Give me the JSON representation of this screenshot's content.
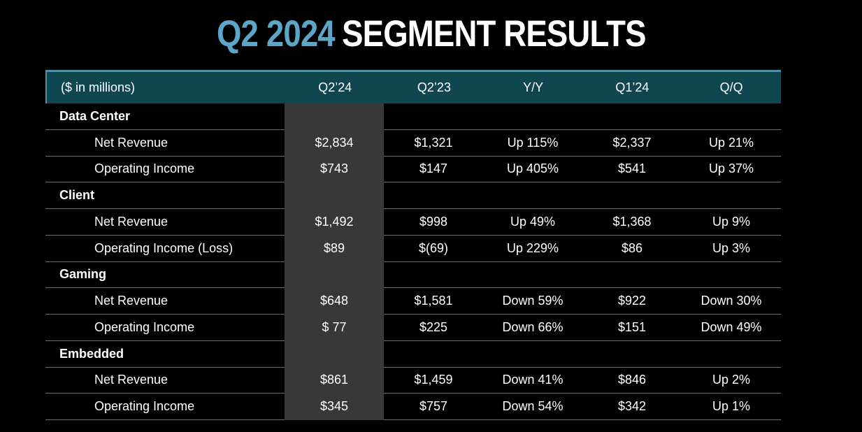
{
  "title": {
    "accent": "Q2 2024",
    "rest": "SEGMENT RESULTS"
  },
  "table": {
    "unit_label": "($ in millions)",
    "columns": [
      "Q2’24",
      "Q2’23",
      "Y/Y",
      "Q1’24",
      "Q/Q"
    ],
    "sections": [
      {
        "name": "Data Center",
        "rows": [
          {
            "label": "Net Revenue",
            "values": [
              "$2,834",
              "$1,321",
              "Up 115%",
              "$2,337",
              "Up 21%"
            ]
          },
          {
            "label": "Operating Income",
            "values": [
              "$743",
              "$147",
              "Up 405%",
              "$541",
              "Up 37%"
            ]
          }
        ]
      },
      {
        "name": "Client",
        "rows": [
          {
            "label": "Net Revenue",
            "values": [
              "$1,492",
              "$998",
              "Up 49%",
              "$1,368",
              "Up 9%"
            ]
          },
          {
            "label": "Operating Income (Loss)",
            "values": [
              "$89",
              "$(69)",
              "Up 229%",
              "$86",
              "Up 3%"
            ]
          }
        ]
      },
      {
        "name": "Gaming",
        "rows": [
          {
            "label": "Net Revenue",
            "values": [
              "$648",
              "$1,581",
              "Down 59%",
              "$922",
              "Down 30%"
            ]
          },
          {
            "label": "Operating Income",
            "values": [
              "$ 77",
              "$225",
              "Down 66%",
              "$151",
              "Down 49%"
            ]
          }
        ]
      },
      {
        "name": "Embedded",
        "rows": [
          {
            "label": "Net Revenue",
            "values": [
              "$861",
              "$1,459",
              "Down 41%",
              "$846",
              "Up 2%"
            ]
          },
          {
            "label": "Operating Income",
            "values": [
              "$345",
              "$757",
              "Down 54%",
              "$342",
              "Up 1%"
            ]
          }
        ]
      }
    ]
  },
  "colors": {
    "accent_blue": "#5BA7C7",
    "header_background": "#104650",
    "header_border": "#4C93A4",
    "highlight_column": "#383838",
    "divider": "#6F6F6F",
    "background": "#000000",
    "text": "#FFFFFF"
  }
}
